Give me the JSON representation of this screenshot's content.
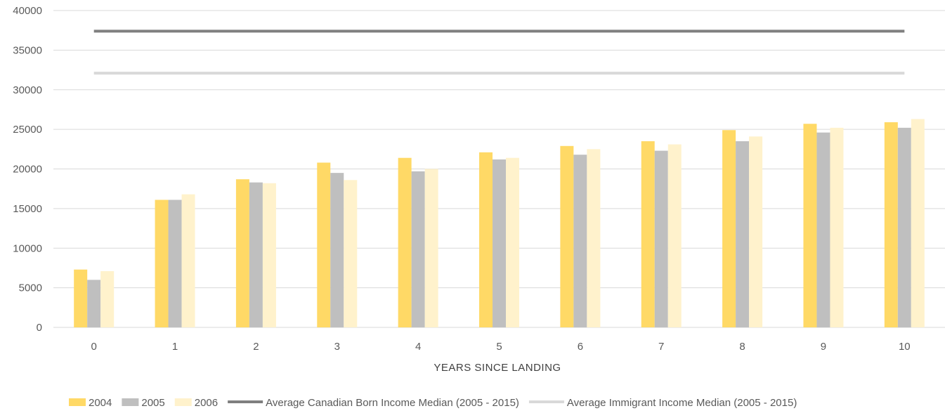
{
  "chart_data": {
    "type": "bar",
    "title": "",
    "xlabel": "YEARS SINCE LANDING",
    "ylabel": "",
    "ylim": [
      0,
      40000
    ],
    "yticks": [
      0,
      5000,
      10000,
      15000,
      20000,
      25000,
      30000,
      35000,
      40000
    ],
    "categories": [
      "0",
      "1",
      "2",
      "3",
      "4",
      "5",
      "6",
      "7",
      "8",
      "9",
      "10"
    ],
    "grid": true,
    "legend_position": "bottom",
    "series": [
      {
        "name": "2004",
        "kind": "bar",
        "color": "#FFD966",
        "values": [
          7300,
          16100,
          18700,
          20800,
          21400,
          22100,
          22900,
          23500,
          24900,
          25700,
          25900
        ]
      },
      {
        "name": "2005",
        "kind": "bar",
        "color": "#BFBFBF",
        "values": [
          6000,
          16100,
          18300,
          19500,
          19700,
          21200,
          21800,
          22300,
          23500,
          24600,
          25200
        ]
      },
      {
        "name": "2006",
        "kind": "bar",
        "color": "#FFF2CC",
        "values": [
          7100,
          16800,
          18200,
          18600,
          20000,
          21400,
          22500,
          23100,
          24100,
          25200,
          26300
        ]
      },
      {
        "name": "Average Canadian Born Income Median (2005 - 2015)",
        "kind": "line",
        "color": "#7F7F7F",
        "values": [
          37400,
          37400,
          37400,
          37400,
          37400,
          37400,
          37400,
          37400,
          37400,
          37400,
          37400
        ]
      },
      {
        "name": "Average Immigrant Income Median (2005 - 2015)",
        "kind": "line",
        "color": "#D9D9D9",
        "values": [
          32100,
          32100,
          32100,
          32100,
          32100,
          32100,
          32100,
          32100,
          32100,
          32100,
          32100
        ]
      }
    ]
  }
}
